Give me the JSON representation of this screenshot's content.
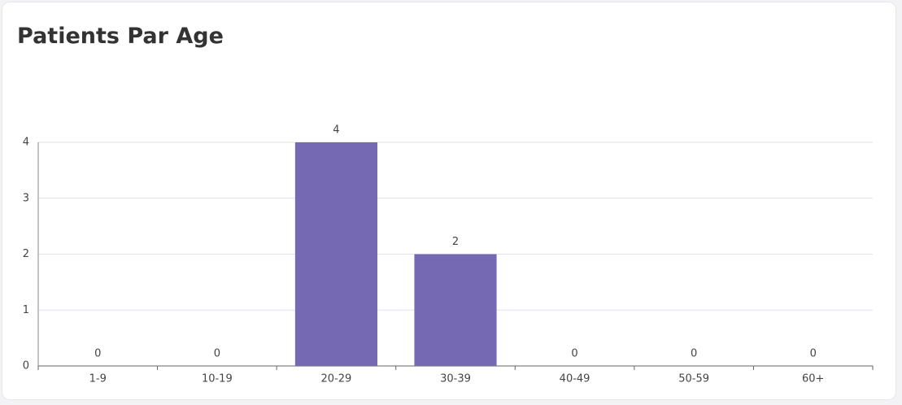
{
  "chart_data": {
    "type": "bar",
    "title": "Patients Par Age",
    "categories": [
      "1-9",
      "10-19",
      "20-29",
      "30-39",
      "40-49",
      "50-59",
      "60+"
    ],
    "values": [
      0,
      0,
      4,
      2,
      0,
      0,
      0
    ],
    "color": "#7669b3",
    "ylim": [
      0,
      4
    ],
    "yticks": [
      0,
      1,
      2,
      3,
      4
    ],
    "grid": true,
    "data_labels": true
  }
}
